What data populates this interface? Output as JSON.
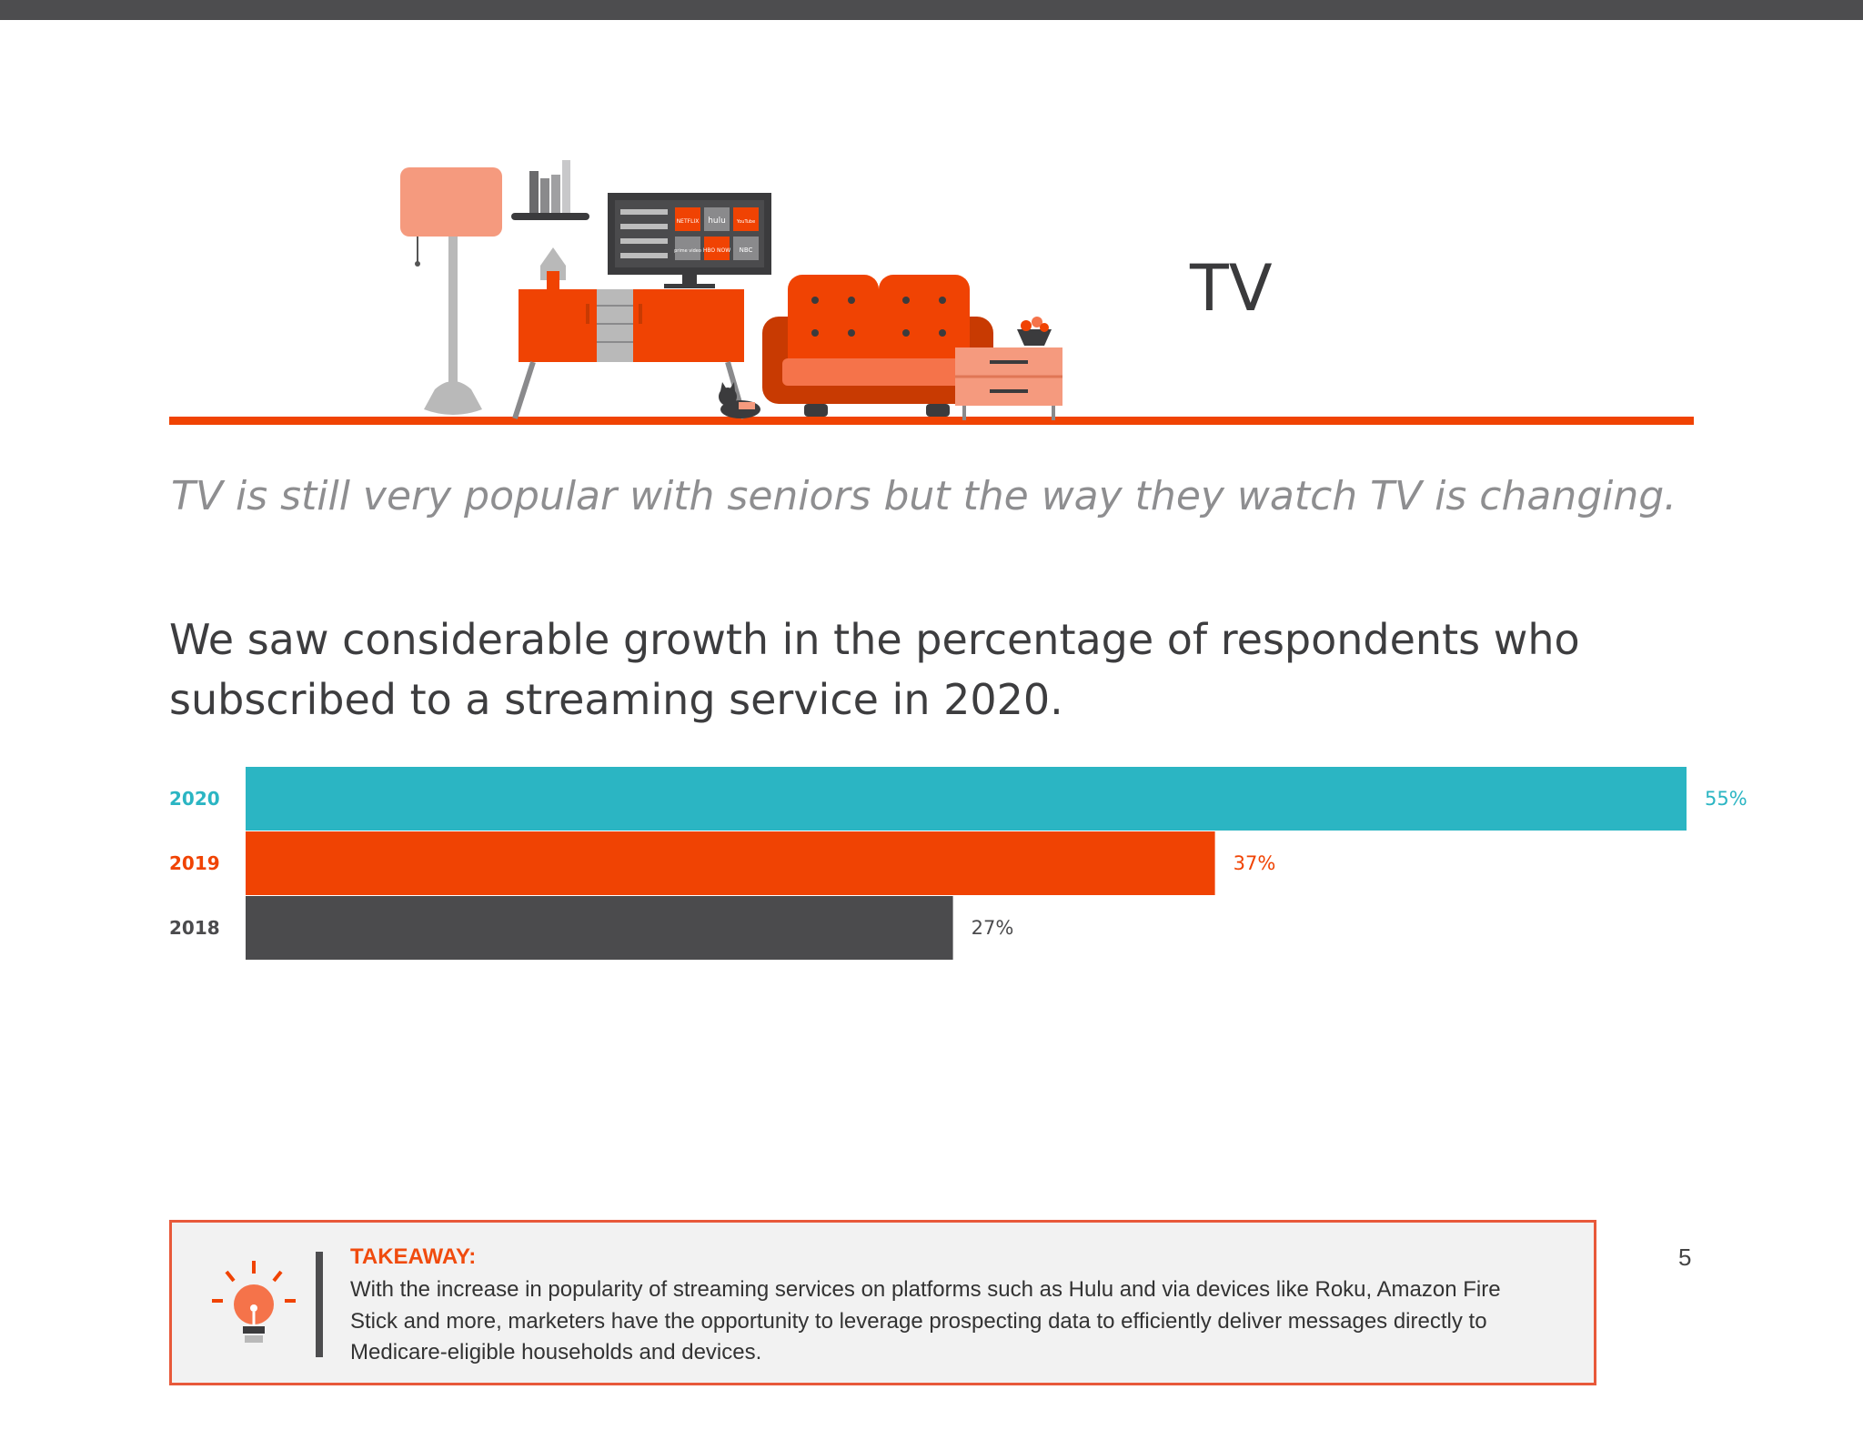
{
  "section_title": "TV",
  "subtitle": "TV is still very popular with seniors but the way they watch TV is changing.",
  "headline": "We saw considerable growth in the percentage of respondents who subscribed to a streaming service in 2020.",
  "tv_screen_tiles": [
    "NETFLIX",
    "hulu",
    "YouTube",
    "prime video",
    "HBO NOW",
    "NBC"
  ],
  "chart_data": {
    "type": "bar",
    "orientation": "horizontal",
    "categories": [
      "2020",
      "2019",
      "2018"
    ],
    "values": [
      55,
      37,
      27
    ],
    "value_labels": [
      "55%",
      "37%",
      "27%"
    ],
    "colors": [
      "#2bb5c3",
      "#f04303",
      "#4b4b4d"
    ],
    "xlim": [
      0,
      55
    ],
    "grid": false
  },
  "takeaway": {
    "heading": "TAKEAWAY:",
    "body": "With the increase in popularity of streaming services on platforms such as Hulu and via devices like Roku, Amazon Fire Stick and more, marketers have the opportunity to leverage prospecting data to efficiently deliver messages directly to Medicare-eligible households and devices."
  },
  "page_number": "5",
  "colors": {
    "accent_orange": "#f04303",
    "teal": "#2bb5c3",
    "dark_gray": "#4b4b4d"
  }
}
